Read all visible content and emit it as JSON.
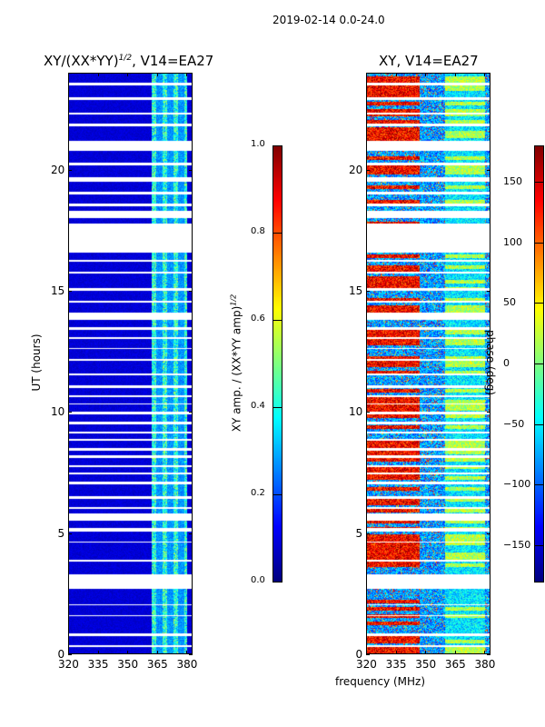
{
  "chart_data": [
    {
      "type": "heatmap",
      "suptitle": "2019-02-14 0.0-24.0",
      "title_base": "XY/(XX*YY)",
      "title_sup": "1/2",
      "title_tail": ", V14=EA27",
      "xlabel": "",
      "ylabel": "UT (hours)",
      "xlim": [
        320,
        383
      ],
      "ylim": [
        0,
        24
      ],
      "xticks": [
        "320",
        "335",
        "350",
        "365",
        "380"
      ],
      "xtick_values": [
        320,
        335,
        350,
        365,
        380
      ],
      "yticks": [
        "0",
        "5",
        "10",
        "15",
        "20"
      ],
      "ytick_values": [
        0,
        5,
        10,
        15,
        20
      ],
      "colorbar": {
        "label": "XY amp. / (XX*YY amp)",
        "label_sup": "1/2",
        "range": [
          0,
          1
        ],
        "ticks": [
          "0.0",
          "0.2",
          "0.4",
          "0.6",
          "0.8",
          "1.0"
        ],
        "tick_values": [
          0,
          0.2,
          0.4,
          0.6,
          0.8,
          1.0
        ],
        "colormap": "jet"
      },
      "bright_band_mhz": [
        362,
        380
      ],
      "flagged_hours": [
        [
          0.3,
          0.35
        ],
        [
          0.75,
          0.85
        ],
        [
          1.55,
          1.6
        ],
        [
          2.0,
          2.05
        ],
        [
          2.7,
          3.3
        ],
        [
          3.8,
          3.9
        ],
        [
          4.6,
          4.65
        ],
        [
          5.05,
          5.2
        ],
        [
          5.5,
          5.8
        ],
        [
          6.0,
          6.05
        ],
        [
          6.4,
          6.5
        ],
        [
          7.0,
          7.1
        ],
        [
          7.4,
          7.5
        ],
        [
          7.7,
          7.8
        ],
        [
          8.1,
          8.2
        ],
        [
          8.4,
          8.5
        ],
        [
          8.8,
          8.9
        ],
        [
          9.1,
          9.2
        ],
        [
          9.5,
          9.6
        ],
        [
          9.9,
          10.0
        ],
        [
          10.3,
          10.35
        ],
        [
          10.6,
          10.7
        ],
        [
          11.0,
          11.1
        ],
        [
          11.5,
          11.6
        ],
        [
          12.1,
          12.2
        ],
        [
          12.6,
          12.65
        ],
        [
          13.0,
          13.1
        ],
        [
          13.4,
          13.5
        ],
        [
          13.8,
          14.1
        ],
        [
          14.5,
          14.6
        ],
        [
          15.0,
          15.1
        ],
        [
          15.7,
          15.8
        ],
        [
          16.2,
          16.3
        ],
        [
          16.6,
          17.8
        ],
        [
          18.0,
          18.3
        ],
        [
          18.5,
          18.6
        ],
        [
          19.0,
          19.1
        ],
        [
          19.5,
          19.7
        ],
        [
          20.2,
          20.3
        ],
        [
          20.8,
          21.2
        ],
        [
          21.8,
          21.9
        ],
        [
          22.3,
          22.35
        ],
        [
          22.9,
          23.0
        ],
        [
          23.5,
          23.6
        ]
      ]
    },
    {
      "type": "heatmap",
      "title": "XY, V14=EA27",
      "xlabel": "frequency (MHz)",
      "ylabel": "",
      "xlim": [
        320,
        383
      ],
      "ylim": [
        0,
        24
      ],
      "xticks": [
        "320",
        "335",
        "350",
        "365",
        "380"
      ],
      "xtick_values": [
        320,
        335,
        350,
        365,
        380
      ],
      "yticks": [
        "0",
        "5",
        "10",
        "15",
        "20"
      ],
      "ytick_values": [
        0,
        5,
        10,
        15,
        20
      ],
      "colorbar": {
        "label": "phase (deg)",
        "range": [
          -180,
          180
        ],
        "ticks": [
          "−150",
          "−100",
          "−50",
          "0",
          "50",
          "100",
          "150"
        ],
        "tick_values": [
          -150,
          -100,
          -50,
          0,
          50,
          100,
          150
        ],
        "colormap": "jet"
      }
    }
  ]
}
